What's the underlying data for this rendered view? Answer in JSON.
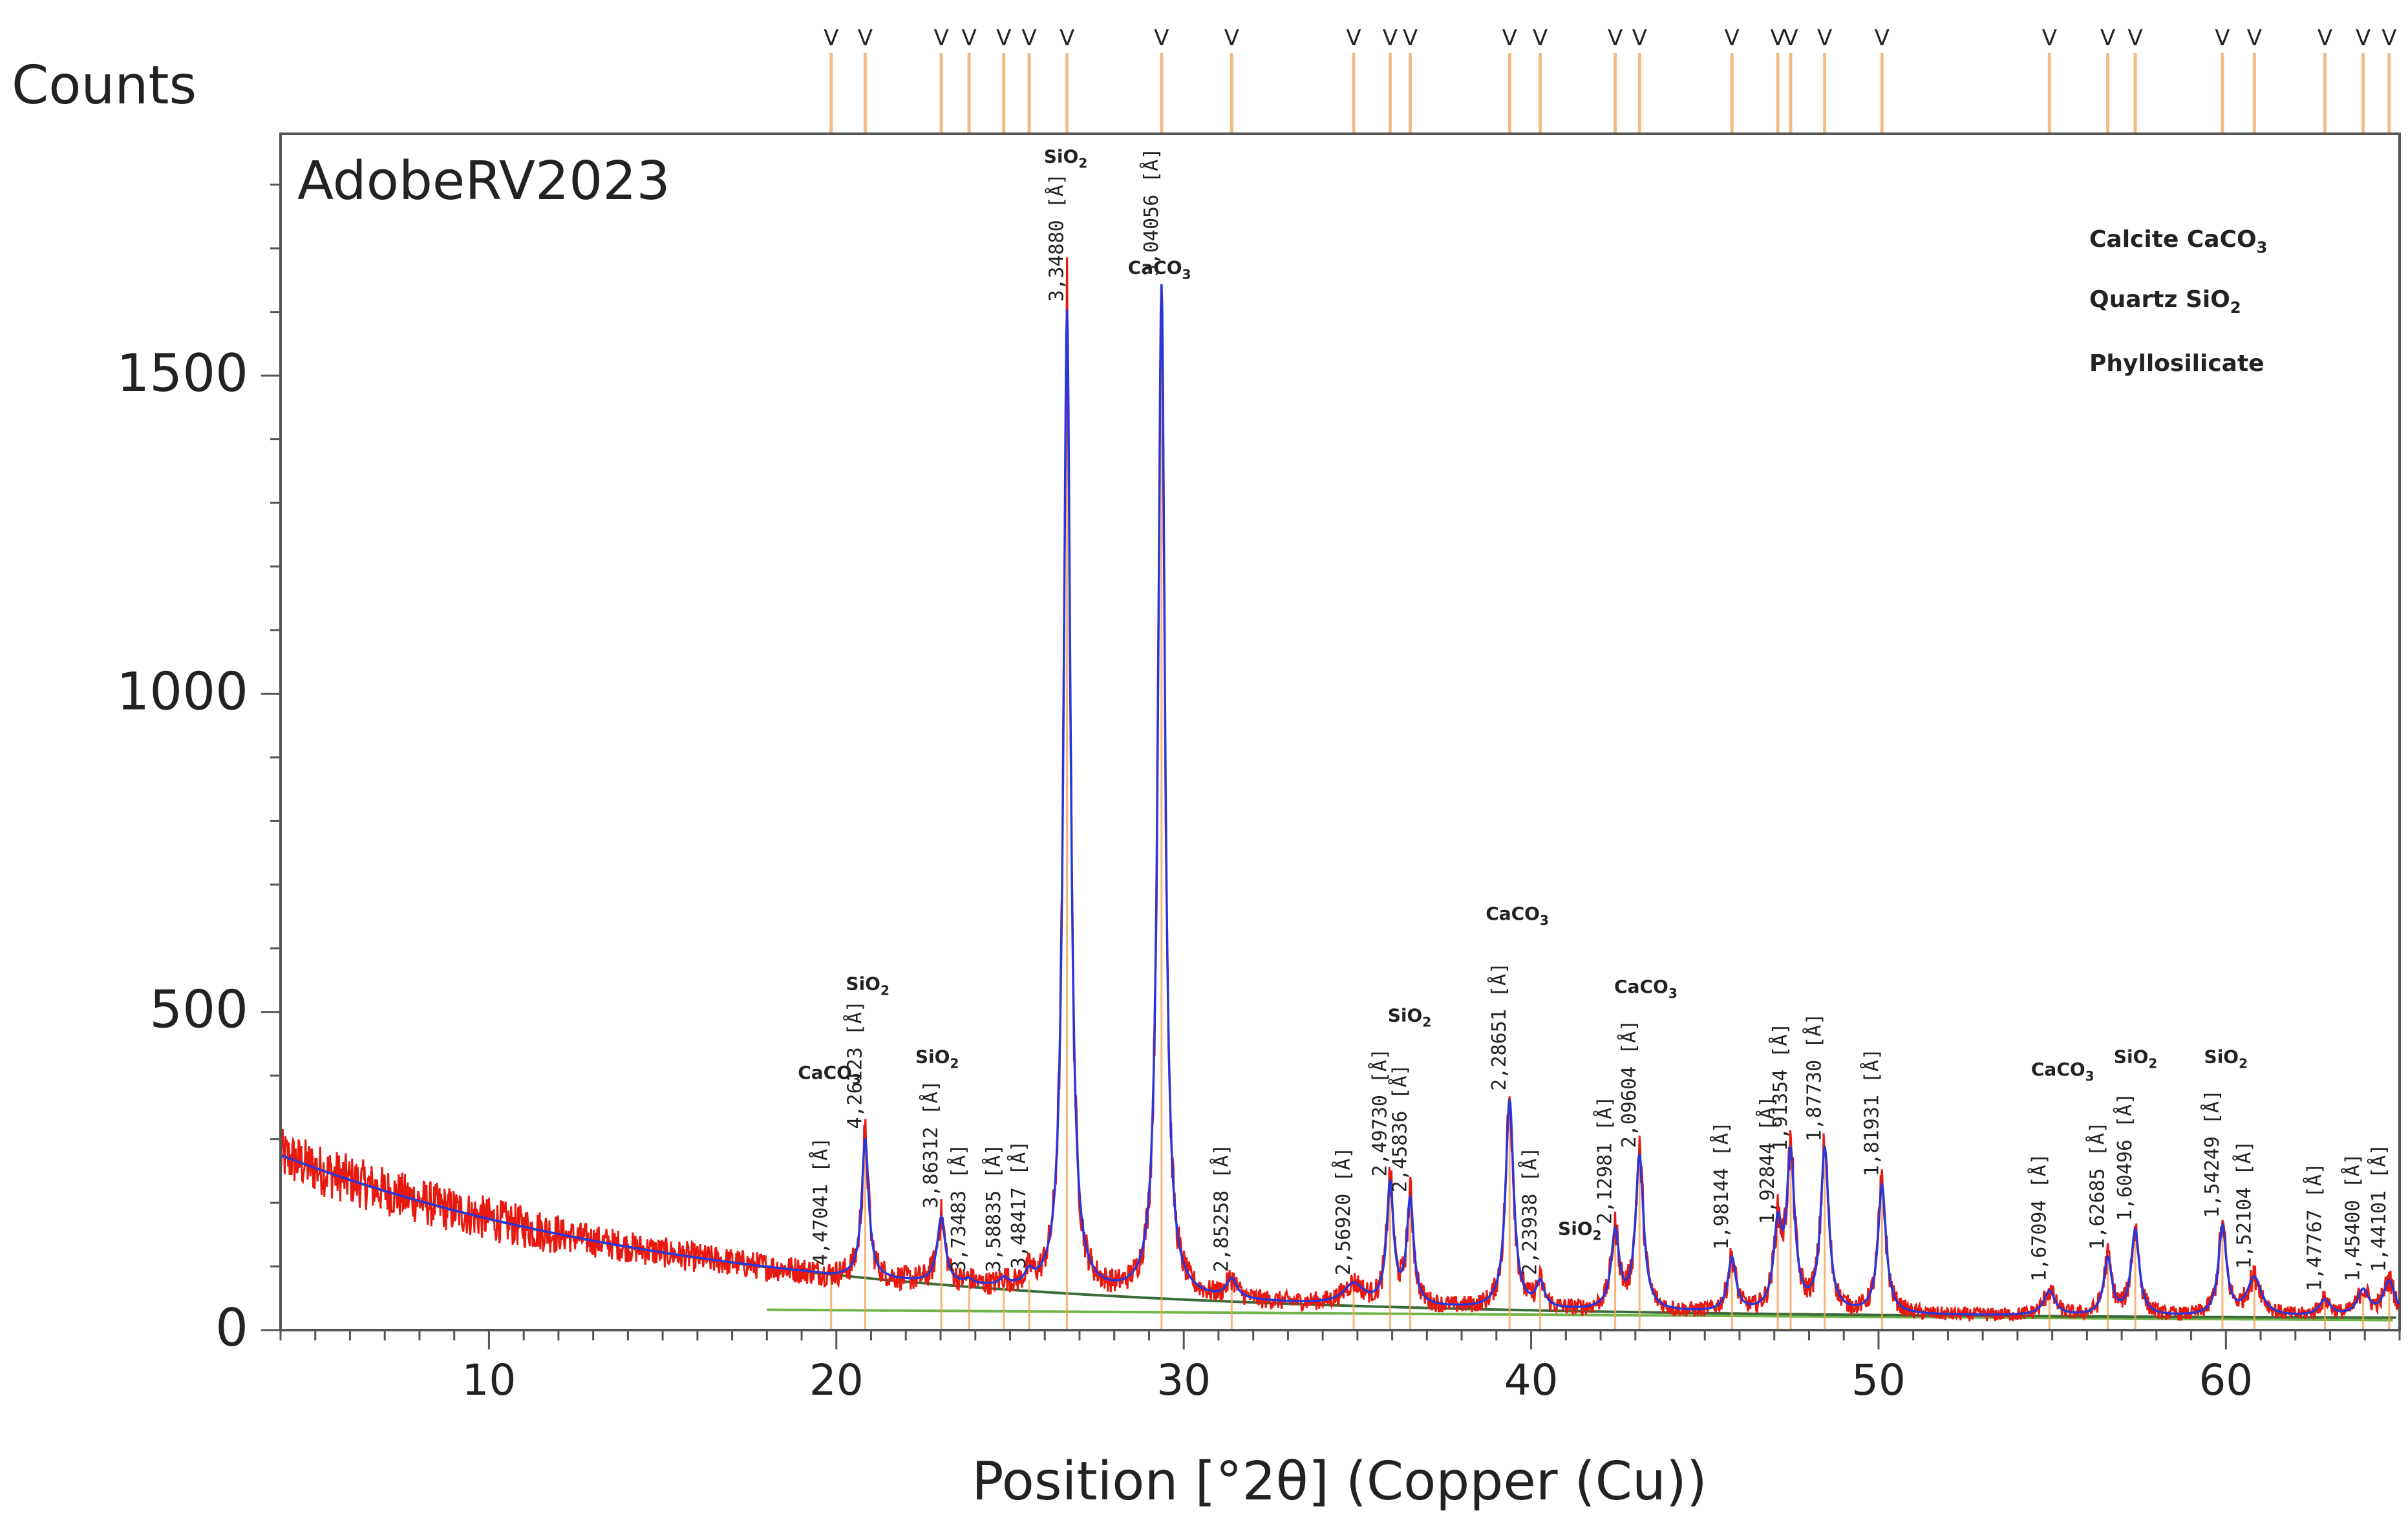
{
  "chart_data": {
    "type": "line",
    "counts_label": "Counts",
    "sample_name": "AdobeRV2023",
    "xlabel": "Position [°2θ] (Copper (Cu))",
    "ylabel": "Counts",
    "xlim": [
      4,
      65
    ],
    "ylim": [
      0,
      1880
    ],
    "x_ticks": [
      10,
      20,
      30,
      40,
      50,
      60
    ],
    "y_ticks": [
      0,
      500,
      1000,
      1500
    ],
    "legend_position": "top-right",
    "legend": [
      {
        "label": "Calcite CaCO",
        "sub": "3",
        "color": "#4169c9"
      },
      {
        "label": "Quartz SiO",
        "sub": "2",
        "color": "#d01010"
      },
      {
        "label": "Phyllosilicate",
        "sub": "",
        "color": "#5aaa32"
      }
    ],
    "series": [
      {
        "name": "Observed pattern",
        "color": "#e8190e"
      },
      {
        "name": "Calculated profile",
        "color": "#2b36d9"
      },
      {
        "name": "Background",
        "color": "#3a6b3a"
      },
      {
        "name": "Phyllosilicate background",
        "color": "#70b44a"
      }
    ],
    "background": {
      "counts_at_xmin": 275,
      "counts_at_30": 48,
      "counts_at_65": 18
    },
    "peaks": [
      {
        "x": 19.85,
        "counts": 85,
        "width": 0.35,
        "d": "4,47041 [Å]"
      },
      {
        "x": 20.83,
        "counts": 300,
        "width": 0.12,
        "d": "4,26123 [Å]"
      },
      {
        "x": 23.02,
        "counts": 175,
        "width": 0.14,
        "d": "3,86312 [Å]"
      },
      {
        "x": 23.82,
        "counts": 75,
        "width": 0.14,
        "d": "3,73483 [Å]"
      },
      {
        "x": 24.82,
        "counts": 75,
        "width": 0.14,
        "d": "3,58835 [Å]"
      },
      {
        "x": 25.55,
        "counts": 80,
        "width": 0.14,
        "d": "3,48417 [Å]"
      },
      {
        "x": 26.64,
        "counts": 1600,
        "width": 0.12,
        "d": "3,34880 [Å]"
      },
      {
        "x": 29.36,
        "counts": 1640,
        "width": 0.12,
        "d": "3,04056 [Å]"
      },
      {
        "x": 31.38,
        "counts": 75,
        "width": 0.18,
        "d": "2,85258 [Å]"
      },
      {
        "x": 34.89,
        "counts": 70,
        "width": 0.35,
        "d": "2,56920 [Å]"
      },
      {
        "x": 35.94,
        "counts": 225,
        "width": 0.12,
        "d": "2,49730 [Å]"
      },
      {
        "x": 36.52,
        "counts": 200,
        "width": 0.12,
        "d": "2,45836 [Å]"
      },
      {
        "x": 39.38,
        "counts": 360,
        "width": 0.14,
        "d": "2,28651 [Å]"
      },
      {
        "x": 40.26,
        "counts": 70,
        "width": 0.14,
        "d": "2,23938 [Å]"
      },
      {
        "x": 42.42,
        "counts": 150,
        "width": 0.14,
        "d": "2,12981 [Å]"
      },
      {
        "x": 43.12,
        "counts": 270,
        "width": 0.14,
        "d": "2,09604 [Å]"
      },
      {
        "x": 45.78,
        "counts": 110,
        "width": 0.14,
        "d": "1,98144 [Å]"
      },
      {
        "x": 47.1,
        "counts": 150,
        "width": 0.14,
        "d": "1,92844 [Å]"
      },
      {
        "x": 47.47,
        "counts": 265,
        "width": 0.14,
        "d": "1,91354 [Å]"
      },
      {
        "x": 48.45,
        "counts": 280,
        "width": 0.14,
        "d": "1,87730 [Å]"
      },
      {
        "x": 50.1,
        "counts": 225,
        "width": 0.14,
        "d": "1,81931 [Å]"
      },
      {
        "x": 54.92,
        "counts": 60,
        "width": 0.2,
        "d": "1,67094 [Å]"
      },
      {
        "x": 56.6,
        "counts": 110,
        "width": 0.14,
        "d": "1,62685 [Å]"
      },
      {
        "x": 57.39,
        "counts": 155,
        "width": 0.14,
        "d": "1,60496 [Å]"
      },
      {
        "x": 59.9,
        "counts": 160,
        "width": 0.14,
        "d": "1,54249 [Å]"
      },
      {
        "x": 60.82,
        "counts": 80,
        "width": 0.25,
        "d": "1,52104 [Å]"
      },
      {
        "x": 62.85,
        "counts": 45,
        "width": 0.2,
        "d": "1,47767 [Å]"
      },
      {
        "x": 63.95,
        "counts": 60,
        "width": 0.2,
        "d": "1,45400 [Å]"
      },
      {
        "x": 64.7,
        "counts": 75,
        "width": 0.2,
        "d": "1,44101 [Å]"
      }
    ],
    "phase_annotations": [
      {
        "x": 19.8,
        "counts": 395,
        "text": "CaCO",
        "sub": "3",
        "phase": "calcite"
      },
      {
        "x": 20.9,
        "counts": 535,
        "text": "SiO",
        "sub": "2",
        "phase": "quartz"
      },
      {
        "x": 22.9,
        "counts": 420,
        "text": "SiO",
        "sub": "2",
        "phase": "quartz"
      },
      {
        "x": 26.6,
        "counts": 1835,
        "text": "SiO",
        "sub": "2",
        "phase": "quartz"
      },
      {
        "x": 29.3,
        "counts": 1660,
        "text": "CaCO",
        "sub": "3",
        "phase": "calcite"
      },
      {
        "x": 36.5,
        "counts": 485,
        "text": "SiO",
        "sub": "2",
        "phase": "quartz"
      },
      {
        "x": 39.6,
        "counts": 645,
        "text": "CaCO",
        "sub": "3",
        "phase": "calcite"
      },
      {
        "x": 41.4,
        "counts": 150,
        "text": "SiO",
        "sub": "2",
        "phase": "quartz"
      },
      {
        "x": 43.3,
        "counts": 530,
        "text": "CaCO",
        "sub": "3",
        "phase": "calcite"
      },
      {
        "x": 55.3,
        "counts": 400,
        "text": "CaCO",
        "sub": "3",
        "phase": "calcite"
      },
      {
        "x": 57.4,
        "counts": 420,
        "text": "SiO",
        "sub": "2",
        "phase": "quartz"
      },
      {
        "x": 60.0,
        "counts": 420,
        "text": "SiO",
        "sub": "2",
        "phase": "quartz"
      }
    ],
    "peak_markers": [
      19.85,
      20.83,
      23.02,
      23.82,
      24.82,
      25.55,
      26.64,
      29.36,
      31.38,
      34.89,
      35.94,
      36.52,
      39.38,
      40.26,
      42.42,
      43.12,
      45.78,
      47.1,
      47.47,
      48.45,
      50.1,
      54.92,
      56.6,
      57.39,
      59.9,
      60.82,
      62.85,
      63.95,
      64.7
    ]
  }
}
